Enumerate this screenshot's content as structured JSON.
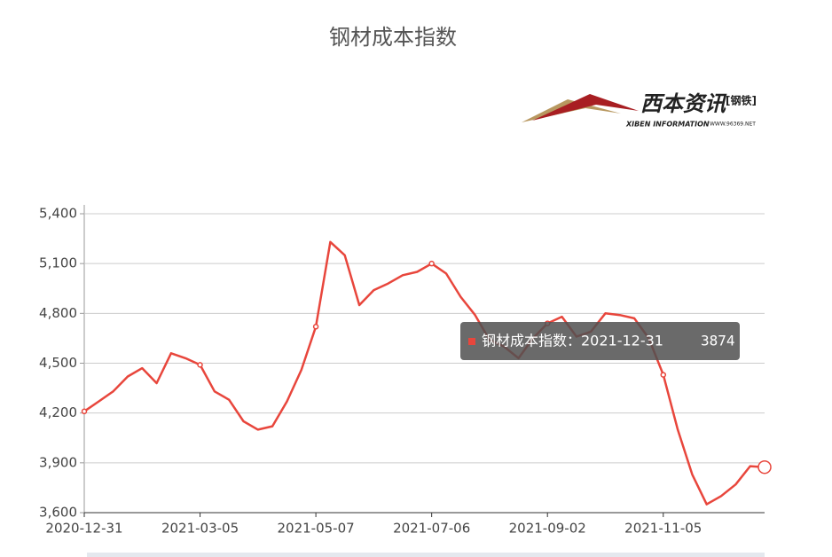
{
  "chart_data": {
    "type": "line",
    "title": "钢材成本指数",
    "color": "#e8463c",
    "categories": [
      "2020-12-31",
      null,
      null,
      null,
      null,
      null,
      null,
      null,
      "2021-03-05",
      null,
      null,
      null,
      null,
      null,
      null,
      null,
      "2021-05-07",
      null,
      null,
      null,
      null,
      null,
      null,
      null,
      "2021-07-06",
      null,
      null,
      null,
      null,
      null,
      null,
      null,
      "2021-09-02",
      null,
      null,
      null,
      null,
      null,
      null,
      null,
      "2021-11-05",
      null,
      null,
      null,
      null,
      null,
      null,
      "2021-12-31"
    ],
    "values": [
      4210,
      4270,
      4330,
      4420,
      4470,
      4380,
      4560,
      4530,
      4490,
      4330,
      4280,
      4150,
      4100,
      4120,
      4270,
      4460,
      4720,
      5230,
      5150,
      4850,
      4940,
      4980,
      5030,
      5050,
      5100,
      5040,
      4900,
      4790,
      4640,
      4600,
      4530,
      4650,
      4740,
      4780,
      4660,
      4690,
      4800,
      4790,
      4770,
      4650,
      4430,
      4100,
      3830,
      3650,
      3700,
      3770,
      3880,
      3874
    ],
    "ylim": [
      3600,
      5400
    ],
    "yticks": [
      {
        "value": 3600,
        "label": "3,600"
      },
      {
        "value": 3900,
        "label": "3,900"
      },
      {
        "value": 4200,
        "label": "4,200"
      },
      {
        "value": 4500,
        "label": "4,500"
      },
      {
        "value": 4800,
        "label": "4,800"
      },
      {
        "value": 5100,
        "label": "5,100"
      },
      {
        "value": 5400,
        "label": "5,400"
      }
    ],
    "grid": true,
    "tooltip": {
      "label": "钢材成本指数：2021-12-31"
    }
  },
  "logo": {
    "name": "西本资讯",
    "tag": "[钢铁]",
    "english": "XIBEN INFORMATION",
    "url": "WWW.96369.NET"
  }
}
